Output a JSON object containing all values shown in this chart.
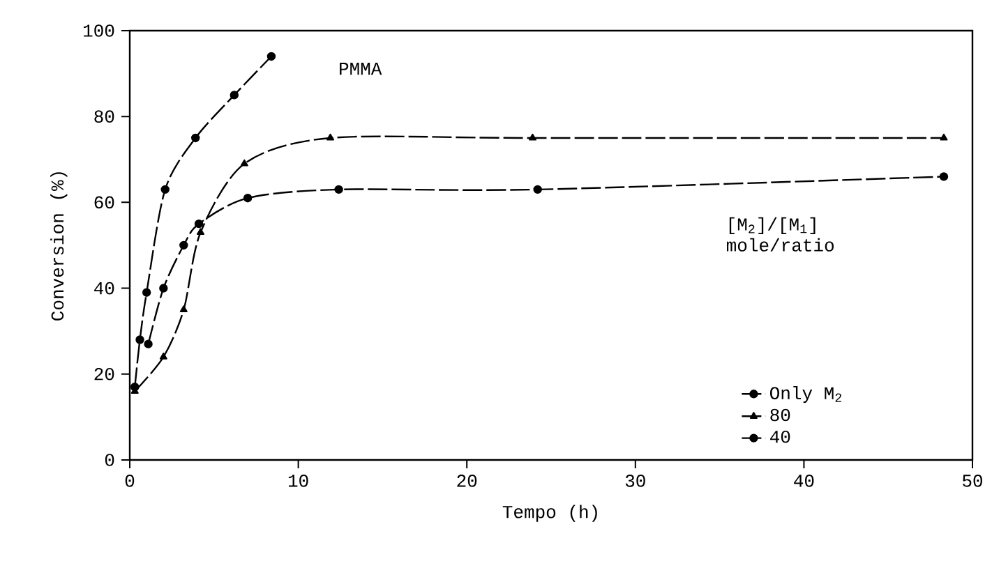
{
  "chart_data": {
    "type": "line",
    "xlabel": "Tempo (h)",
    "ylabel": "Conversion (%)",
    "legend_title": "[M$_{2}$]/[M$_{1}$] mole/ratio",
    "annotations": [
      "PMMA"
    ],
    "series": [
      {
        "name": "Only M$_{2}$",
        "color": "#000000",
        "marker": "circle",
        "x": [
          0.3,
          0.6,
          1.0,
          2.1,
          3.9,
          6.2,
          8.4
        ],
        "values": [
          17,
          28,
          39,
          63,
          75,
          85,
          94
        ]
      },
      {
        "name": "80",
        "color": "#000000",
        "marker": "triangle",
        "x": [
          0.3,
          2.0,
          3.2,
          4.2,
          6.8,
          11.9,
          23.9,
          48.3
        ],
        "values": [
          16,
          24,
          35,
          53,
          69,
          75,
          75,
          75
        ]
      },
      {
        "name": "40",
        "color": "#000000",
        "marker": "circle",
        "x": [
          1.1,
          2.0,
          3.2,
          4.1,
          7.0,
          12.4,
          24.2,
          48.3
        ],
        "values": [
          27,
          40,
          50,
          55,
          61,
          63,
          63,
          66
        ]
      }
    ],
    "xlim": [
      0,
      50
    ],
    "xticks": [
      0,
      10,
      20,
      30,
      40,
      50
    ],
    "ylim": [
      0,
      100
    ],
    "yticks": [
      0,
      20,
      40,
      60,
      80,
      100
    ],
    "grid": false,
    "legend": "right",
    "line_style": "dashed"
  }
}
